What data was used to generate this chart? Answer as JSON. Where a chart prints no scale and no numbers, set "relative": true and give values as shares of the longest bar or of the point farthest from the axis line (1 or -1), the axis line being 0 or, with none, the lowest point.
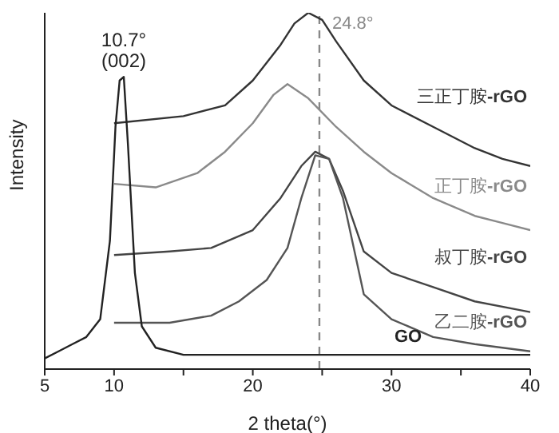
{
  "chart_data": {
    "type": "line",
    "xlabel": "2 theta(°)",
    "ylabel": "Intensity",
    "relative": true,
    "xlim": [
      5,
      40
    ],
    "xticks": [
      5,
      10,
      {
        "value": 15,
        "label": null
      },
      20,
      {
        "value": 25,
        "label": null
      },
      30,
      {
        "value": 35,
        "label": null
      },
      40
    ],
    "grid": false,
    "legend": false,
    "marker": "none",
    "line_style": "solid",
    "series": [
      {
        "name": "三正丁胺-rGO",
        "color": "#333333",
        "x": [
          10,
          15,
          18,
          20,
          22,
          23,
          24,
          25,
          26,
          28,
          30,
          33,
          36,
          38,
          40
        ],
        "values": [
          0.69,
          0.71,
          0.74,
          0.81,
          0.91,
          0.97,
          1.0,
          0.98,
          0.92,
          0.81,
          0.74,
          0.68,
          0.62,
          0.59,
          0.57
        ]
      },
      {
        "name": "正丁胺-rGO",
        "color": "#8a8a8a",
        "x": [
          10,
          13,
          16,
          18,
          20,
          21.5,
          22.5,
          24,
          26,
          28,
          30,
          33,
          36,
          38,
          40
        ],
        "values": [
          0.52,
          0.51,
          0.55,
          0.61,
          0.69,
          0.77,
          0.8,
          0.76,
          0.68,
          0.61,
          0.55,
          0.48,
          0.43,
          0.41,
          0.39
        ]
      },
      {
        "name": "叔丁胺-rGO",
        "color": "#444444",
        "x": [
          10,
          14,
          17,
          20,
          22,
          23.5,
          24.5,
          25.5,
          26.5,
          28,
          30,
          33,
          36,
          40
        ],
        "values": [
          0.32,
          0.33,
          0.34,
          0.39,
          0.48,
          0.57,
          0.61,
          0.59,
          0.5,
          0.33,
          0.27,
          0.23,
          0.19,
          0.16
        ]
      },
      {
        "name": "乙二胺-rGO",
        "color": "#555555",
        "x": [
          10,
          14,
          17,
          19,
          21,
          22.5,
          23.5,
          24.5,
          25.5,
          26.5,
          28,
          30,
          33,
          36,
          40
        ],
        "values": [
          0.13,
          0.13,
          0.15,
          0.19,
          0.25,
          0.34,
          0.48,
          0.6,
          0.59,
          0.48,
          0.21,
          0.14,
          0.09,
          0.07,
          0.05
        ]
      },
      {
        "name": "GO",
        "color": "#222222",
        "x": [
          5,
          6,
          7,
          8,
          9,
          9.7,
          10.1,
          10.4,
          10.7,
          11,
          11.5,
          12,
          13,
          15,
          25,
          40
        ],
        "values": [
          0.03,
          0.05,
          0.07,
          0.09,
          0.14,
          0.36,
          0.68,
          0.81,
          0.82,
          0.63,
          0.27,
          0.12,
          0.06,
          0.04,
          0.04,
          0.04
        ]
      }
    ],
    "ref_lines": [
      {
        "axis": "x",
        "value": 24.8,
        "label": "24.8°",
        "color": "#888888",
        "line_style": "dashed"
      }
    ],
    "annotations": [
      {
        "text": "10.7°\n(002)",
        "x": 10.7,
        "y": 0.82
      }
    ]
  }
}
